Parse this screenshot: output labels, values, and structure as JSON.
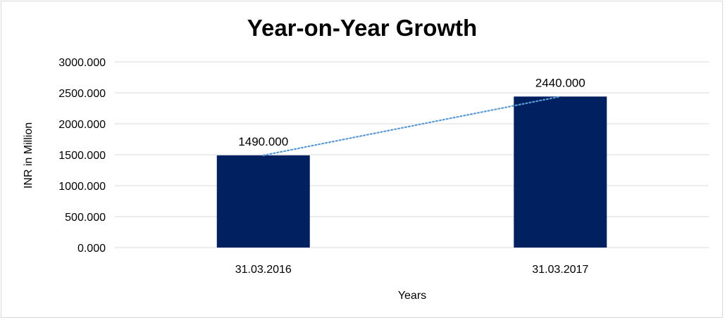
{
  "chart_data": {
    "type": "bar",
    "title": "Year-on-Year Growth",
    "xlabel": "Years",
    "ylabel": "INR in Million",
    "categories": [
      "31.03.2016",
      "31.03.2017"
    ],
    "values": [
      1490,
      2440
    ],
    "value_labels": [
      "1490.000",
      "2440.000"
    ],
    "y_ticks": [
      0,
      500,
      1000,
      1500,
      2000,
      2500,
      3000
    ],
    "y_tick_labels": [
      "0.000",
      "500.000",
      "1000.000",
      "1500.000",
      "2000.000",
      "2500.000",
      "3000.000"
    ],
    "ylim": [
      0,
      3000
    ],
    "grid": true,
    "legend": "none",
    "trendline": "linear",
    "colors": {
      "bar": "#002060",
      "trendline": "#5b9bd5",
      "grid": "#d9d9d9",
      "frame": "#d9d9d9"
    }
  }
}
